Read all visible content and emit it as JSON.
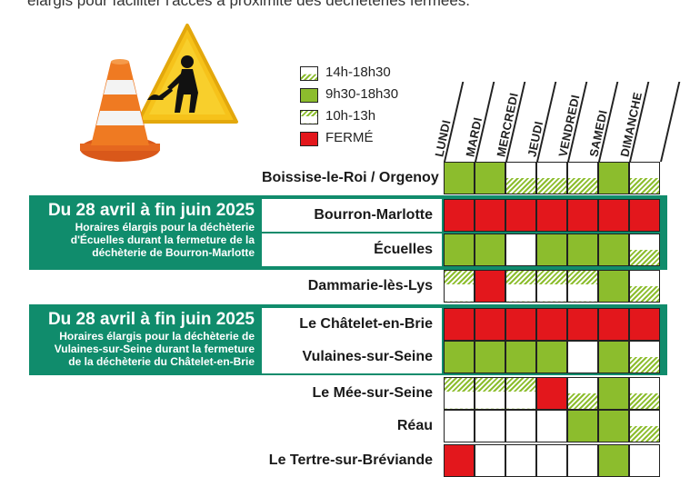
{
  "top_text": "élargis pour faciliter l'accès à proximité des déchèteries fermées.",
  "legend": [
    {
      "label": "14h-18h30",
      "swatch": "hatch-top"
    },
    {
      "label": "9h30-18h30",
      "swatch": "green"
    },
    {
      "label": "10h-13h",
      "swatch": "hatch-bot"
    },
    {
      "label": "FERMÉ",
      "swatch": "red"
    }
  ],
  "days": [
    "LUNDI",
    "MARDI",
    "MERCREDI",
    "JEUDI",
    "VENDREDI",
    "SAMEDI",
    "DIMANCHE"
  ],
  "boxes": [
    {
      "title": "Du 28 avril à fin juin 2025",
      "lines": [
        "Horaires élargis pour la déchèterie",
        "d'Écuelles durant la fermeture de la",
        "déchèterie de Bourron-Marlotte"
      ]
    },
    {
      "title": "Du 28 avril à fin juin 2025",
      "lines": [
        "Horaires élargis pour la déchèterie de",
        "Vulaines-sur-Seine durant la fermeture",
        "de la déchèterie du Châtelet-en-Brie"
      ]
    }
  ],
  "rows": [
    {
      "name": "Boissise-le-Roi / Orgenoy",
      "cells": [
        "G",
        "G",
        "A",
        "A",
        "A",
        "G",
        "A"
      ]
    },
    {
      "name": "Bourron-Marlotte",
      "cells": [
        "R",
        "R",
        "R",
        "R",
        "R",
        "R",
        "R"
      ]
    },
    {
      "name": "Écuelles",
      "cells": [
        "G",
        "G",
        "W",
        "G",
        "G",
        "G",
        "A"
      ]
    },
    {
      "name": "Dammarie-lès-Lys",
      "cells": [
        "M",
        "R",
        "M",
        "M",
        "M",
        "G",
        "A"
      ]
    },
    {
      "name": "Le Châtelet-en-Brie",
      "cells": [
        "R",
        "R",
        "R",
        "R",
        "R",
        "R",
        "R"
      ]
    },
    {
      "name": "Vulaines-sur-Seine",
      "cells": [
        "G",
        "G",
        "G",
        "G",
        "W",
        "G",
        "A"
      ]
    },
    {
      "name": "Le Mée-sur-Seine",
      "cells": [
        "M",
        "M",
        "M",
        "R",
        "A",
        "G",
        "A"
      ]
    },
    {
      "name": "Réau",
      "cells": [
        "W",
        "W",
        "W",
        "W",
        "G",
        "G",
        "A"
      ]
    },
    {
      "name": "Le Tertre-sur-Bréviande",
      "cells": [
        "R",
        "W",
        "W",
        "W",
        "W",
        "G",
        "W"
      ]
    }
  ],
  "colors": {
    "green": "#8cbd2d",
    "red": "#e3171c",
    "band": "#108c6c"
  }
}
